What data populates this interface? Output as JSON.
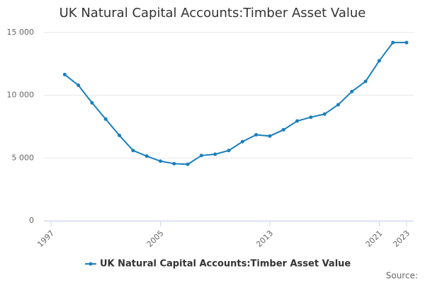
{
  "chart_data": {
    "type": "line",
    "title": "UK Natural Capital Accounts:Timber Asset Value",
    "x": [
      1998,
      1999,
      2000,
      2001,
      2002,
      2003,
      2004,
      2005,
      2006,
      2007,
      2008,
      2009,
      2010,
      2011,
      2012,
      2013,
      2014,
      2015,
      2016,
      2017,
      2018,
      2019,
      2020,
      2021,
      2022,
      2023
    ],
    "series": [
      {
        "name": "UK Natural Capital Accounts:Timber Asset Value",
        "color": "#1a7fbd",
        "values": [
          11650,
          10800,
          9400,
          8100,
          6800,
          5600,
          5150,
          4750,
          4550,
          4500,
          5200,
          5300,
          5600,
          6300,
          6850,
          6750,
          7250,
          7950,
          8250,
          8500,
          9250,
          10300,
          11100,
          12750,
          14200,
          14200
        ]
      }
    ],
    "xlim": [
      1997,
      2023
    ],
    "xticks": [
      1997,
      2005,
      2013,
      2021,
      2023
    ],
    "ylim": [
      0,
      15000
    ],
    "yticks": [
      0,
      {
        "value": 5000,
        "label": "5 000"
      },
      {
        "value": 10000,
        "label": "10 000"
      },
      {
        "value": 15000,
        "label": "15 000"
      }
    ],
    "grid": true,
    "legend": "bottom",
    "source": "Source:"
  }
}
